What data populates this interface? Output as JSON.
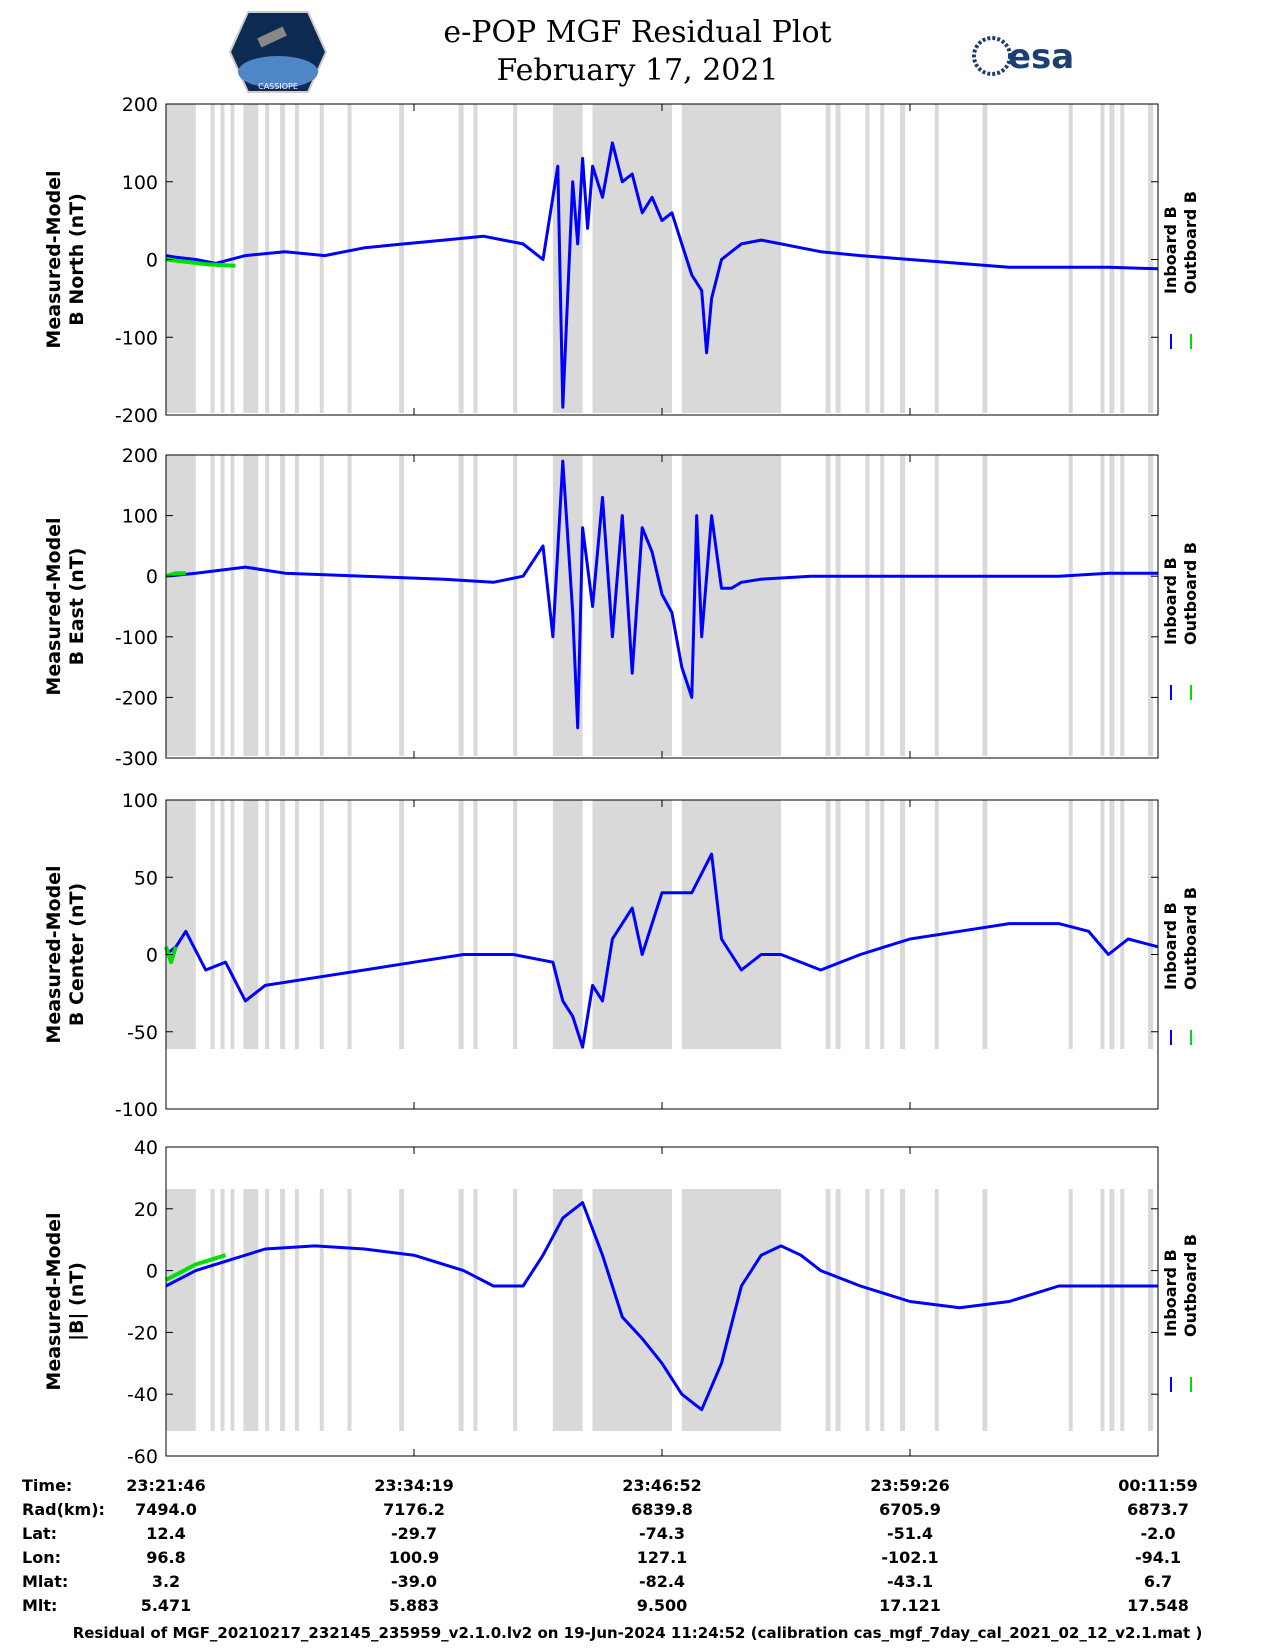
{
  "header": {
    "title_line1": "e-POP MGF Residual Plot",
    "title_line2": "February 17, 2021",
    "logo_left": "CASSIOPE",
    "logo_right": "esa"
  },
  "chart_data": [
    {
      "type": "line",
      "ylabel": [
        "Measured-Model",
        "B North (nT)"
      ],
      "ylim": [
        -200,
        200
      ],
      "yticks": [
        -200,
        -100,
        0,
        100,
        200
      ],
      "legend": [
        "Inboard B",
        "Outboard B"
      ],
      "series": [
        {
          "name": "Inboard B",
          "color": "#0000ff",
          "x": [
            0,
            0.01,
            0.03,
            0.05,
            0.08,
            0.12,
            0.16,
            0.2,
            0.24,
            0.28,
            0.32,
            0.36,
            0.38,
            0.395,
            0.4,
            0.41,
            0.415,
            0.42,
            0.425,
            0.43,
            0.44,
            0.45,
            0.46,
            0.47,
            0.48,
            0.49,
            0.5,
            0.51,
            0.52,
            0.53,
            0.54,
            0.545,
            0.55,
            0.56,
            0.57,
            0.58,
            0.6,
            0.62,
            0.64,
            0.66,
            0.7,
            0.75,
            0.8,
            0.85,
            0.9,
            0.95,
            1.0
          ],
          "y": [
            5,
            3,
            0,
            -5,
            5,
            10,
            5,
            15,
            20,
            25,
            30,
            20,
            0,
            120,
            -190,
            100,
            20,
            130,
            40,
            120,
            80,
            150,
            100,
            110,
            60,
            80,
            50,
            60,
            20,
            -20,
            -40,
            -120,
            -50,
            0,
            10,
            20,
            25,
            20,
            15,
            10,
            5,
            0,
            -5,
            -10,
            -10,
            -10,
            -12
          ]
        },
        {
          "name": "Outboard B",
          "color": "#00e000",
          "x": [
            0,
            0.02,
            0.04,
            0.07
          ],
          "y": [
            0,
            -3,
            -6,
            -8
          ]
        }
      ]
    },
    {
      "type": "line",
      "ylabel": [
        "Measured-Model",
        "B East (nT)"
      ],
      "ylim": [
        -300,
        200
      ],
      "yticks": [
        -300,
        -200,
        -100,
        0,
        100,
        200
      ],
      "legend": [
        "Inboard B",
        "Outboard B"
      ],
      "series": [
        {
          "name": "Inboard B",
          "color": "#0000ff",
          "x": [
            0,
            0.03,
            0.08,
            0.12,
            0.2,
            0.28,
            0.33,
            0.36,
            0.38,
            0.39,
            0.4,
            0.41,
            0.415,
            0.42,
            0.43,
            0.44,
            0.45,
            0.46,
            0.47,
            0.48,
            0.49,
            0.5,
            0.51,
            0.52,
            0.53,
            0.535,
            0.54,
            0.55,
            0.56,
            0.57,
            0.58,
            0.6,
            0.65,
            0.7,
            0.75,
            0.8,
            0.85,
            0.9,
            0.95,
            1.0
          ],
          "y": [
            0,
            5,
            15,
            5,
            0,
            -5,
            -10,
            0,
            50,
            -100,
            190,
            -60,
            -250,
            80,
            -50,
            130,
            -100,
            100,
            -160,
            80,
            40,
            -30,
            -60,
            -150,
            -200,
            100,
            -100,
            100,
            -20,
            -20,
            -10,
            -5,
            0,
            0,
            0,
            0,
            0,
            0,
            5,
            5
          ]
        },
        {
          "name": "Outboard B",
          "color": "#00e000",
          "x": [
            0,
            0.01,
            0.02
          ],
          "y": [
            0,
            5,
            5
          ]
        }
      ]
    },
    {
      "type": "line",
      "ylabel": [
        "Measured-Model",
        "B Center (nT)"
      ],
      "ylim": [
        -100,
        100
      ],
      "yticks": [
        -100,
        -50,
        0,
        50,
        100
      ],
      "legend": [
        "Inboard B",
        "Outboard B"
      ],
      "series": [
        {
          "name": "Inboard B",
          "color": "#0000ff",
          "x": [
            0,
            0.01,
            0.02,
            0.04,
            0.06,
            0.08,
            0.1,
            0.15,
            0.2,
            0.25,
            0.3,
            0.35,
            0.39,
            0.4,
            0.41,
            0.42,
            0.43,
            0.44,
            0.45,
            0.47,
            0.48,
            0.5,
            0.53,
            0.55,
            0.56,
            0.58,
            0.6,
            0.62,
            0.66,
            0.7,
            0.75,
            0.8,
            0.85,
            0.9,
            0.93,
            0.95,
            0.97,
            1.0
          ],
          "y": [
            0,
            5,
            15,
            -10,
            -5,
            -30,
            -20,
            -15,
            -10,
            -5,
            0,
            0,
            -5,
            -30,
            -40,
            -60,
            -20,
            -30,
            10,
            30,
            0,
            40,
            40,
            65,
            10,
            -10,
            0,
            0,
            -10,
            0,
            10,
            15,
            20,
            20,
            15,
            0,
            10,
            5
          ]
        },
        {
          "name": "Outboard B",
          "color": "#00e000",
          "x": [
            0,
            0.005,
            0.01
          ],
          "y": [
            5,
            -5,
            5
          ]
        }
      ]
    },
    {
      "type": "line",
      "ylabel": [
        "Measured-Model",
        "|B| (nT)"
      ],
      "ylim": [
        -60,
        40
      ],
      "yticks": [
        -60,
        -40,
        -20,
        0,
        20,
        40
      ],
      "legend": [
        "Inboard B",
        "Outboard B"
      ],
      "series": [
        {
          "name": "Inboard B",
          "color": "#0000ff",
          "x": [
            0,
            0.03,
            0.06,
            0.1,
            0.15,
            0.2,
            0.25,
            0.3,
            0.33,
            0.36,
            0.38,
            0.4,
            0.42,
            0.44,
            0.46,
            0.48,
            0.5,
            0.52,
            0.54,
            0.56,
            0.58,
            0.6,
            0.62,
            0.64,
            0.66,
            0.7,
            0.75,
            0.8,
            0.85,
            0.9,
            0.95,
            1.0
          ],
          "y": [
            -5,
            0,
            3,
            7,
            8,
            7,
            5,
            0,
            -5,
            -5,
            5,
            17,
            22,
            5,
            -15,
            -22,
            -30,
            -40,
            -45,
            -30,
            -5,
            5,
            8,
            5,
            0,
            -5,
            -10,
            -12,
            -10,
            -5,
            -5,
            -5
          ]
        },
        {
          "name": "Outboard B",
          "color": "#00e000",
          "x": [
            0,
            0.03,
            0.06
          ],
          "y": [
            -3,
            2,
            5
          ]
        }
      ]
    }
  ],
  "info": {
    "labels": [
      "Time:",
      "Rad(km):",
      "Lat:",
      "Lon:",
      "Mlat:",
      "Mlt:"
    ],
    "columns": [
      [
        "23:21:46",
        "7494.0",
        "12.4",
        "96.8",
        "3.2",
        "5.471"
      ],
      [
        "23:34:19",
        "7176.2",
        "-29.7",
        "100.9",
        "-39.0",
        "5.883"
      ],
      [
        "23:46:52",
        "6839.8",
        "-74.3",
        "127.1",
        "-82.4",
        "9.500"
      ],
      [
        "23:59:26",
        "6705.9",
        "-51.4",
        "-102.1",
        "-43.1",
        "17.121"
      ],
      [
        "00:11:59",
        "6873.7",
        "-2.0",
        "-94.1",
        "6.7",
        "17.548"
      ]
    ]
  },
  "footer": "Residual of MGF_20210217_232145_235959_v2.1.0.lv2 on 19-Jun-2024 11:24:52 (calibration cas_mgf_7day_cal_2021_02_12_v2.1.mat )"
}
